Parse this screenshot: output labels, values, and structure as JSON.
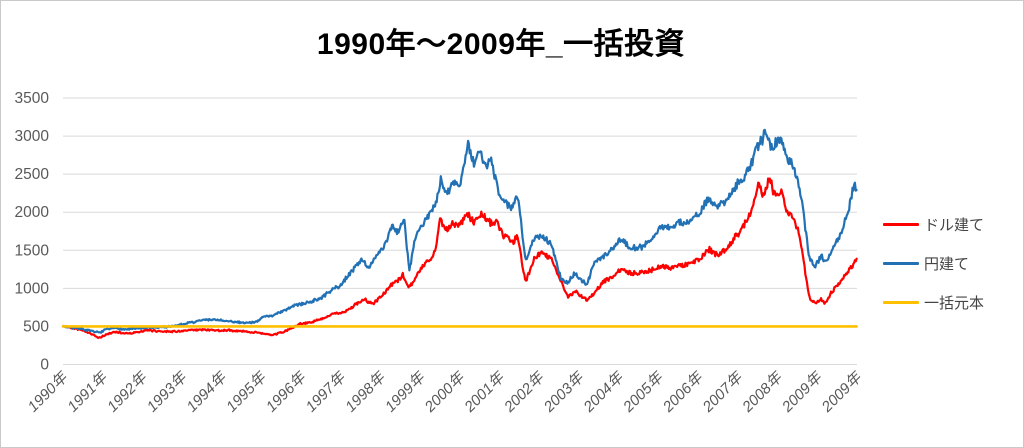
{
  "title": "1990年～2009年_一括投資",
  "colors": {
    "usd_line": "#FF0000",
    "jpy_line": "#2271B5",
    "principal_line": "#FFC000",
    "gridline": "#D9D9D9",
    "axis_text": "#595959",
    "legend_text": "#444444",
    "title_text": "#000000"
  },
  "chart_data": {
    "type": "line",
    "title": "1990年～2009年_一括投資",
    "grid": true,
    "legend_position": "right",
    "x_axis": {
      "range_years": [
        1990,
        2010
      ],
      "tick_labels": [
        "1990年",
        "1991年",
        "1992年",
        "1993年",
        "1994年",
        "1995年",
        "1996年",
        "1997年",
        "1998年",
        "1999年",
        "2000年",
        "2001年",
        "2002年",
        "2003年",
        "2004年",
        "2005年",
        "2006年",
        "2007年",
        "2008年",
        "2009年",
        "2009年"
      ]
    },
    "y_axis": {
      "range": [
        0,
        3500
      ],
      "ticks": [
        0,
        500,
        1000,
        1500,
        2000,
        2500,
        3000,
        3500
      ]
    },
    "series": [
      {
        "name": "ドル建て",
        "color": "#FF0000",
        "points": [
          [
            1990.0,
            500
          ],
          [
            1990.2,
            485
          ],
          [
            1990.45,
            470
          ],
          [
            1990.65,
            420
          ],
          [
            1990.9,
            350
          ],
          [
            1991.1,
            395
          ],
          [
            1991.3,
            430
          ],
          [
            1991.55,
            415
          ],
          [
            1991.8,
            425
          ],
          [
            1992.1,
            445
          ],
          [
            1992.4,
            435
          ],
          [
            1992.7,
            440
          ],
          [
            1993.0,
            445
          ],
          [
            1993.3,
            450
          ],
          [
            1993.6,
            455
          ],
          [
            1993.9,
            455
          ],
          [
            1994.2,
            450
          ],
          [
            1994.5,
            435
          ],
          [
            1994.8,
            420
          ],
          [
            1995.05,
            405
          ],
          [
            1995.3,
            390
          ],
          [
            1995.55,
            425
          ],
          [
            1995.8,
            480
          ],
          [
            1996.0,
            530
          ],
          [
            1996.3,
            555
          ],
          [
            1996.6,
            605
          ],
          [
            1996.9,
            670
          ],
          [
            1997.15,
            700
          ],
          [
            1997.4,
            780
          ],
          [
            1997.6,
            840
          ],
          [
            1997.8,
            800
          ],
          [
            1998.0,
            905
          ],
          [
            1998.2,
            1010
          ],
          [
            1998.4,
            1110
          ],
          [
            1998.55,
            1190
          ],
          [
            1998.7,
            1010
          ],
          [
            1998.85,
            1130
          ],
          [
            1999.0,
            1260
          ],
          [
            1999.2,
            1380
          ],
          [
            1999.4,
            1550
          ],
          [
            1999.5,
            1960
          ],
          [
            1999.62,
            1750
          ],
          [
            1999.8,
            1870
          ],
          [
            2000.0,
            1800
          ],
          [
            2000.18,
            1950
          ],
          [
            2000.35,
            1830
          ],
          [
            2000.55,
            1960
          ],
          [
            2000.75,
            1830
          ],
          [
            2000.95,
            1820
          ],
          [
            2001.1,
            1650
          ],
          [
            2001.3,
            1590
          ],
          [
            2001.45,
            1690
          ],
          [
            2001.65,
            1060
          ],
          [
            2001.85,
            1380
          ],
          [
            2002.05,
            1490
          ],
          [
            2002.3,
            1400
          ],
          [
            2002.55,
            1120
          ],
          [
            2002.72,
            890
          ],
          [
            2002.9,
            960
          ],
          [
            2003.05,
            900
          ],
          [
            2003.2,
            830
          ],
          [
            2003.4,
            960
          ],
          [
            2003.6,
            1110
          ],
          [
            2003.85,
            1170
          ],
          [
            2004.05,
            1250
          ],
          [
            2004.3,
            1185
          ],
          [
            2004.55,
            1195
          ],
          [
            2004.8,
            1230
          ],
          [
            2005.05,
            1285
          ],
          [
            2005.3,
            1265
          ],
          [
            2005.55,
            1315
          ],
          [
            2005.8,
            1340
          ],
          [
            2006.05,
            1420
          ],
          [
            2006.28,
            1545
          ],
          [
            2006.48,
            1455
          ],
          [
            2006.7,
            1510
          ],
          [
            2006.95,
            1720
          ],
          [
            2007.15,
            1830
          ],
          [
            2007.35,
            2020
          ],
          [
            2007.52,
            2330
          ],
          [
            2007.65,
            2180
          ],
          [
            2007.8,
            2430
          ],
          [
            2007.95,
            2140
          ],
          [
            2008.08,
            2260
          ],
          [
            2008.25,
            1980
          ],
          [
            2008.4,
            1920
          ],
          [
            2008.55,
            1760
          ],
          [
            2008.68,
            1300
          ],
          [
            2008.8,
            900
          ],
          [
            2008.95,
            805
          ],
          [
            2009.1,
            860
          ],
          [
            2009.2,
            800
          ],
          [
            2009.35,
            960
          ],
          [
            2009.55,
            1090
          ],
          [
            2009.75,
            1210
          ],
          [
            2009.9,
            1330
          ],
          [
            2009.99,
            1400
          ]
        ]
      },
      {
        "name": "円建て",
        "color": "#2271B5",
        "points": [
          [
            1990.0,
            500
          ],
          [
            1990.2,
            490
          ],
          [
            1990.45,
            480
          ],
          [
            1990.65,
            455
          ],
          [
            1990.9,
            415
          ],
          [
            1991.1,
            455
          ],
          [
            1991.35,
            475
          ],
          [
            1991.6,
            460
          ],
          [
            1991.85,
            470
          ],
          [
            1992.15,
            475
          ],
          [
            1992.45,
            480
          ],
          [
            1992.75,
            495
          ],
          [
            1993.05,
            530
          ],
          [
            1993.35,
            560
          ],
          [
            1993.65,
            585
          ],
          [
            1993.95,
            575
          ],
          [
            1994.2,
            555
          ],
          [
            1994.5,
            545
          ],
          [
            1994.8,
            560
          ],
          [
            1995.05,
            625
          ],
          [
            1995.3,
            655
          ],
          [
            1995.6,
            705
          ],
          [
            1995.9,
            780
          ],
          [
            1996.2,
            835
          ],
          [
            1996.5,
            870
          ],
          [
            1996.75,
            980
          ],
          [
            1997.0,
            1050
          ],
          [
            1997.25,
            1210
          ],
          [
            1997.5,
            1380
          ],
          [
            1997.7,
            1290
          ],
          [
            1997.9,
            1430
          ],
          [
            1998.1,
            1560
          ],
          [
            1998.3,
            1860
          ],
          [
            1998.45,
            1760
          ],
          [
            1998.6,
            1960
          ],
          [
            1998.72,
            1240
          ],
          [
            1998.85,
            1620
          ],
          [
            1999.0,
            1810
          ],
          [
            1999.2,
            1920
          ],
          [
            1999.4,
            2120
          ],
          [
            1999.52,
            2420
          ],
          [
            1999.65,
            2180
          ],
          [
            1999.82,
            2360
          ],
          [
            2000.0,
            2320
          ],
          [
            2000.2,
            2850
          ],
          [
            2000.35,
            2580
          ],
          [
            2000.5,
            2760
          ],
          [
            2000.65,
            2540
          ],
          [
            2000.8,
            2690
          ],
          [
            2000.95,
            2350
          ],
          [
            2001.1,
            2180
          ],
          [
            2001.3,
            2050
          ],
          [
            2001.45,
            2200
          ],
          [
            2001.65,
            1340
          ],
          [
            2001.85,
            1650
          ],
          [
            2002.05,
            1730
          ],
          [
            2002.3,
            1620
          ],
          [
            2002.55,
            1130
          ],
          [
            2002.72,
            1090
          ],
          [
            2002.9,
            1230
          ],
          [
            2003.05,
            1120
          ],
          [
            2003.2,
            1070
          ],
          [
            2003.4,
            1360
          ],
          [
            2003.6,
            1430
          ],
          [
            2003.85,
            1560
          ],
          [
            2004.05,
            1660
          ],
          [
            2004.3,
            1560
          ],
          [
            2004.55,
            1560
          ],
          [
            2004.8,
            1660
          ],
          [
            2005.05,
            1840
          ],
          [
            2005.3,
            1810
          ],
          [
            2005.55,
            1880
          ],
          [
            2005.8,
            1910
          ],
          [
            2006.05,
            1970
          ],
          [
            2006.28,
            2170
          ],
          [
            2006.48,
            2040
          ],
          [
            2006.7,
            2160
          ],
          [
            2006.95,
            2390
          ],
          [
            2007.15,
            2520
          ],
          [
            2007.35,
            2700
          ],
          [
            2007.52,
            2910
          ],
          [
            2007.68,
            3050
          ],
          [
            2007.82,
            2890
          ],
          [
            2008.0,
            2960
          ],
          [
            2008.1,
            2900
          ],
          [
            2008.25,
            2700
          ],
          [
            2008.38,
            2640
          ],
          [
            2008.55,
            2380
          ],
          [
            2008.68,
            1900
          ],
          [
            2008.8,
            1420
          ],
          [
            2008.95,
            1310
          ],
          [
            2009.1,
            1460
          ],
          [
            2009.2,
            1360
          ],
          [
            2009.35,
            1520
          ],
          [
            2009.55,
            1710
          ],
          [
            2009.75,
            1960
          ],
          [
            2009.88,
            2280
          ],
          [
            2009.94,
            2400
          ],
          [
            2009.99,
            2330
          ]
        ]
      },
      {
        "name": "一括元本",
        "color": "#FFC000",
        "points": [
          [
            1990.0,
            500
          ],
          [
            2009.99,
            500
          ]
        ]
      }
    ]
  }
}
